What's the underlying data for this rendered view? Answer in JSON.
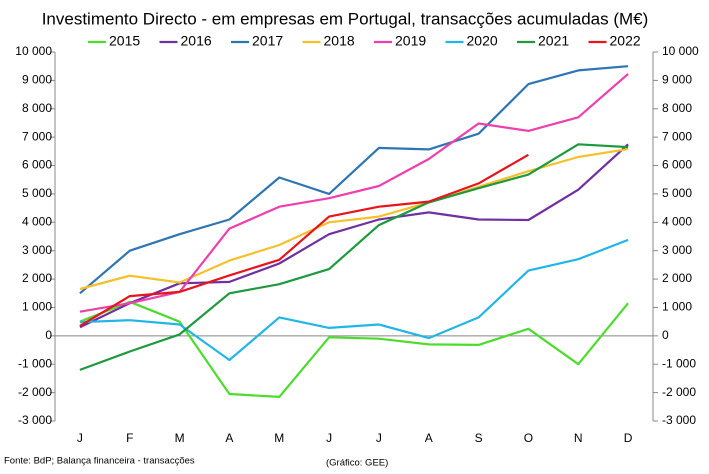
{
  "chart_data": {
    "type": "line",
    "title": "Investimento Directo - em empresas em Portugal, transacções acumuladas (M€)",
    "categories": [
      "J",
      "F",
      "M",
      "A",
      "M",
      "J",
      "J",
      "A",
      "S",
      "O",
      "N",
      "D"
    ],
    "series": [
      {
        "name": "2015",
        "color": "#4ddc2e",
        "values": [
          500,
          1200,
          500,
          -2050,
          -2150,
          -50,
          -100,
          -300,
          -320,
          250,
          -1000,
          1150
        ]
      },
      {
        "name": "2016",
        "color": "#7030a0",
        "values": [
          300,
          1150,
          1850,
          1900,
          2550,
          3580,
          4100,
          4350,
          4100,
          4080,
          5150,
          6750
        ]
      },
      {
        "name": "2017",
        "color": "#2e75b6",
        "values": [
          1500,
          3000,
          3580,
          4100,
          5580,
          5000,
          6620,
          6570,
          7120,
          8870,
          9350,
          9500
        ]
      },
      {
        "name": "2018",
        "color": "#f5c02a",
        "values": [
          1650,
          2120,
          1880,
          2650,
          3200,
          4000,
          4200,
          4700,
          5250,
          5800,
          6300,
          6580
        ]
      },
      {
        "name": "2019",
        "color": "#ee3fae",
        "values": [
          850,
          1150,
          1550,
          3780,
          4550,
          4850,
          5280,
          6230,
          7480,
          7220,
          7700,
          9230
        ]
      },
      {
        "name": "2020",
        "color": "#22b5e8",
        "values": [
          480,
          550,
          400,
          -850,
          650,
          280,
          400,
          -80,
          650,
          2300,
          2700,
          3380
        ]
      },
      {
        "name": "2021",
        "color": "#1d9a3e",
        "values": [
          -1200,
          -550,
          50,
          1500,
          1820,
          2350,
          3900,
          4700,
          5200,
          5680,
          6750,
          6650
        ]
      },
      {
        "name": "2022",
        "color": "#e8141c",
        "values": [
          350,
          1400,
          1550,
          2130,
          2680,
          4200,
          4550,
          4730,
          5370,
          6380,
          null,
          null
        ]
      }
    ],
    "ylim": [
      -3000,
      10000
    ],
    "yticks": [
      {
        "value": -3000,
        "label": "-3 000"
      },
      {
        "value": -2000,
        "label": "-2 000"
      },
      {
        "value": -1000,
        "label": "-1 000"
      },
      0,
      {
        "value": 1000,
        "label": "1 000"
      },
      {
        "value": 2000,
        "label": "2 000"
      },
      {
        "value": 3000,
        "label": "3 000"
      },
      {
        "value": 4000,
        "label": "4 000"
      },
      {
        "value": 5000,
        "label": "5 000"
      },
      {
        "value": 6000,
        "label": "6 000"
      },
      {
        "value": 7000,
        "label": "7 000"
      },
      {
        "value": 8000,
        "label": "8 000"
      },
      {
        "value": 9000,
        "label": "9 000"
      },
      {
        "value": 10000,
        "label": "10 000"
      }
    ],
    "y2lim": [
      -3000,
      10000
    ],
    "y2ticks": [
      {
        "value": -3000,
        "label": "-3 000"
      },
      {
        "value": -2000,
        "label": "-2 000"
      },
      {
        "value": -1000,
        "label": "-1 000"
      },
      0,
      {
        "value": 1000,
        "label": "1 000"
      },
      {
        "value": 2000,
        "label": "2 000"
      },
      {
        "value": 3000,
        "label": "3 000"
      },
      {
        "value": 4000,
        "label": "4 000"
      },
      {
        "value": 5000,
        "label": "5 000"
      },
      {
        "value": 6000,
        "label": "6 000"
      },
      {
        "value": 7000,
        "label": "7 000"
      },
      {
        "value": 8000,
        "label": "8 000"
      },
      {
        "value": 9000,
        "label": "9 000"
      },
      {
        "value": 10000,
        "label": "10 000"
      }
    ],
    "grid": false,
    "legend": "top",
    "source": "Fonte: BdP; Balança financeira - transacções",
    "credit": "(Gráfico: GEE)"
  }
}
